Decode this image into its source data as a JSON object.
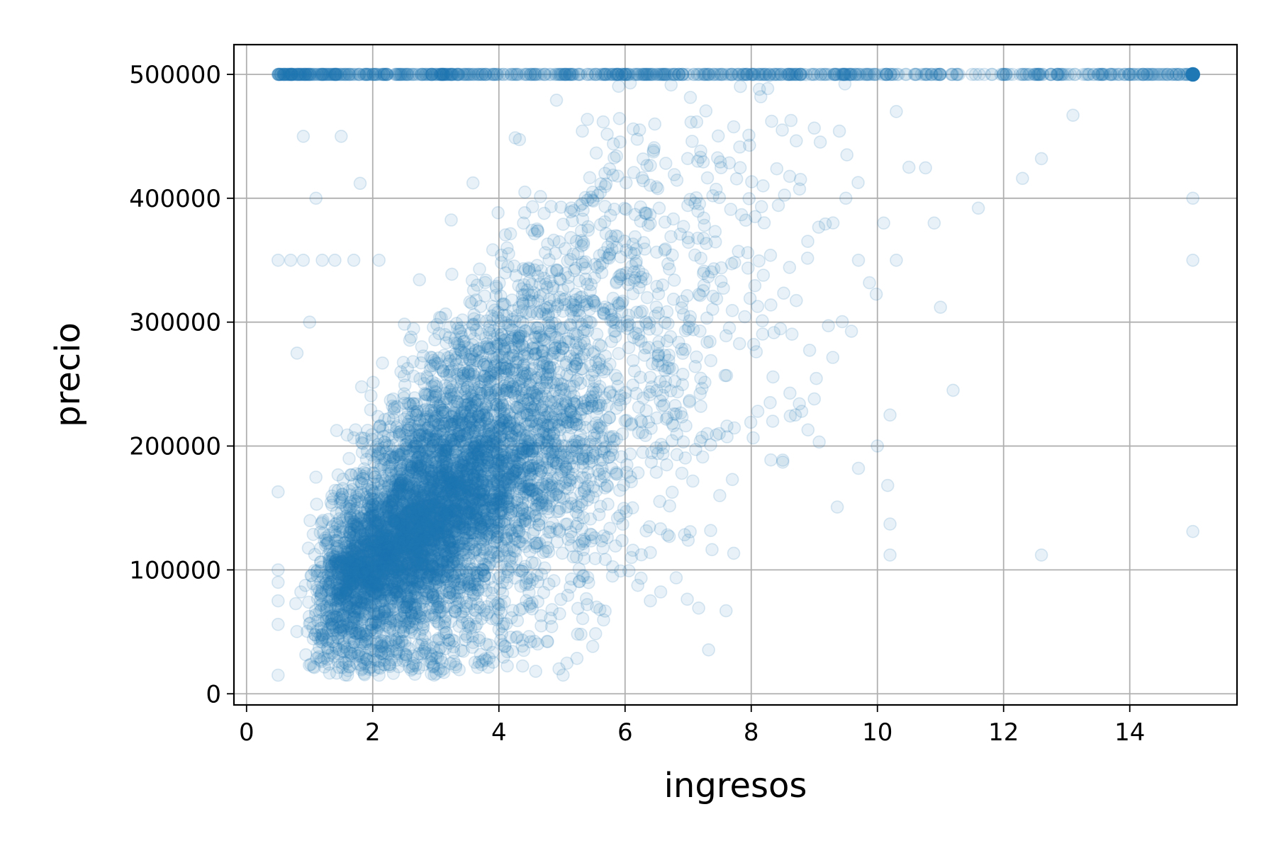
{
  "chart_data": {
    "type": "scatter",
    "title": "",
    "xlabel": "ingresos",
    "ylabel": "precio",
    "xlim": [
      -0.2,
      15.7
    ],
    "ylim": [
      -9000,
      524000
    ],
    "xticks": [
      0,
      2,
      4,
      6,
      8,
      10,
      12,
      14
    ],
    "yticks": [
      0,
      100000,
      200000,
      300000,
      400000,
      500000
    ],
    "xtick_labels": [
      "0",
      "2",
      "4",
      "6",
      "8",
      "10",
      "12",
      "14"
    ],
    "ytick_labels": [
      "0",
      "100000",
      "200000",
      "300000",
      "400000",
      "500000"
    ],
    "grid": true,
    "legend": "none",
    "marker_color": "#1f77b4",
    "marker_alpha": 0.1,
    "series": [
      {
        "description_points_sample": true,
        "points": [
          [
            0.5,
            500000
          ],
          [
            0.7,
            500000
          ],
          [
            0.9,
            500000
          ],
          [
            1.2,
            500000
          ],
          [
            1.5,
            500000
          ],
          [
            1.9,
            500000
          ],
          [
            2.0,
            500000
          ],
          [
            2.4,
            500000
          ],
          [
            2.8,
            500000
          ],
          [
            3.1,
            500000
          ],
          [
            3.4,
            500000
          ],
          [
            3.8,
            500000
          ],
          [
            4.2,
            500000
          ],
          [
            4.6,
            500000
          ],
          [
            5.0,
            500000
          ],
          [
            5.4,
            500000
          ],
          [
            5.8,
            500000
          ],
          [
            6.2,
            500000
          ],
          [
            6.6,
            500000
          ],
          [
            7.0,
            500000
          ],
          [
            7.4,
            500000
          ],
          [
            7.8,
            500000
          ],
          [
            8.2,
            500000
          ],
          [
            8.6,
            500000
          ],
          [
            9.0,
            500000
          ],
          [
            9.4,
            500000
          ],
          [
            9.8,
            500000
          ],
          [
            10.2,
            500000
          ],
          [
            10.6,
            500000
          ],
          [
            11.0,
            500000
          ],
          [
            11.5,
            500000
          ],
          [
            12.0,
            500000
          ],
          [
            12.4,
            500000
          ],
          [
            12.9,
            500000
          ],
          [
            13.3,
            500000
          ],
          [
            13.8,
            500000
          ],
          [
            14.4,
            500000
          ],
          [
            15.0,
            500000
          ],
          [
            0.5,
            350000
          ],
          [
            0.7,
            350000
          ],
          [
            0.9,
            350000
          ],
          [
            1.2,
            350000
          ],
          [
            1.4,
            350000
          ],
          [
            1.7,
            350000
          ],
          [
            2.1,
            350000
          ],
          [
            0.5,
            163000
          ],
          [
            0.5,
            100000
          ],
          [
            0.5,
            90000
          ],
          [
            0.5,
            75000
          ],
          [
            0.5,
            56000
          ],
          [
            0.5,
            15000
          ],
          [
            0.9,
            450000
          ],
          [
            1.1,
            400000
          ],
          [
            1.0,
            300000
          ],
          [
            0.8,
            275000
          ],
          [
            1.5,
            450000
          ],
          [
            1.8,
            412000
          ],
          [
            1.2,
            60000
          ],
          [
            1.6,
            15000
          ],
          [
            2.1,
            15000
          ],
          [
            3.8,
            40000
          ],
          [
            4.0,
            52000
          ],
          [
            5.3,
            48000
          ],
          [
            9.5,
            400000
          ],
          [
            9.7,
            350000
          ],
          [
            10.1,
            380000
          ],
          [
            10.3,
            470000
          ],
          [
            10.5,
            425000
          ],
          [
            10.9,
            380000
          ],
          [
            11.0,
            312000
          ],
          [
            11.6,
            392000
          ],
          [
            12.3,
            416000
          ],
          [
            12.6,
            432000
          ],
          [
            13.1,
            467000
          ],
          [
            10.3,
            350000
          ],
          [
            10.2,
            225000
          ],
          [
            11.2,
            245000
          ],
          [
            10.0,
            200000
          ],
          [
            9.7,
            182000
          ],
          [
            10.2,
            137000
          ],
          [
            10.2,
            112000
          ],
          [
            12.6,
            112000
          ],
          [
            7.6,
            67000
          ],
          [
            6.4,
            75000
          ],
          [
            15.0,
            400000
          ],
          [
            15.0,
            350000
          ],
          [
            15.0,
            131000
          ],
          [
            8.3,
            235000
          ],
          [
            8.5,
            187000
          ],
          [
            8.8,
            228000
          ],
          [
            9.0,
            238000
          ],
          [
            8.7,
            225000
          ],
          [
            8.9,
            213000
          ],
          [
            7.2,
            232000
          ],
          [
            7.3,
            210000
          ],
          [
            7.5,
            160000
          ],
          [
            7.7,
            173000
          ],
          [
            6.9,
            178000
          ],
          [
            7.0,
            124000
          ],
          [
            6.4,
            114000
          ],
          [
            6.1,
            110000
          ],
          [
            5.8,
            95000
          ],
          [
            5.6,
            68000
          ],
          [
            5.4,
            72000
          ],
          [
            6.7,
            127000
          ]
        ]
      }
    ],
    "highlight_point": {
      "x": 15.0,
      "y": 500000,
      "color": "#1f77b4"
    }
  }
}
